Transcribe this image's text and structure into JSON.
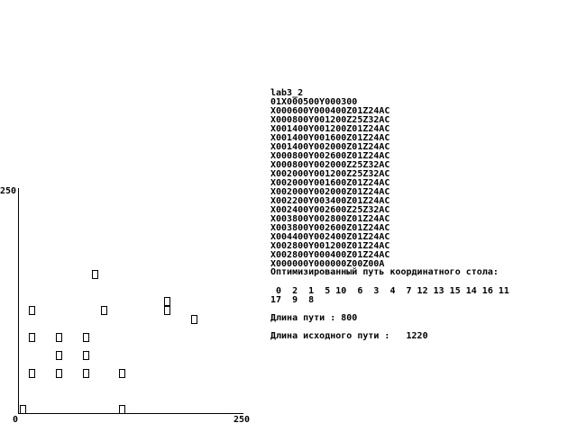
{
  "program": {
    "title": "lab3_2",
    "lines": [
      "01X000500Y000300",
      "X000600Y000400Z01Z24AC",
      "X000800Y001200Z25Z32AC",
      "X001400Y001200Z01Z24AC",
      "X001400Y001600Z01Z24AC",
      "X001400Y002000Z01Z24AC",
      "X000800Y002600Z01Z24AC",
      "X000800Y002000Z25Z32AC",
      "X002000Y001200Z25Z32AC",
      "X002000Y001600Z01Z24AC",
      "X002000Y002000Z01Z24AC",
      "X002200Y003400Z01Z24AC",
      "X002400Y002600Z25Z32AC",
      "X003800Y002800Z01Z24AC",
      "X003800Y002600Z01Z24AC",
      "X004400Y002400Z01Z24AC",
      "X002800Y001200Z01Z24AC",
      "X002800Y000400Z01Z24AC",
      "X000000Y000000Z00Z00A"
    ]
  },
  "result": {
    "status": "Оптимизированный путь координатного стола:",
    "route_line_1": " 0  2  1  5 10  6  3  4  7 12 13 15 14 16 11",
    "route_line_2": "17  9  8",
    "length_label": "Длина пути : 800",
    "orig_length_label": "Длина исходного пути :   1220"
  },
  "axes": {
    "y_max_label": "250",
    "x_min_label": "0",
    "x_max_label": "250"
  },
  "chart_data": {
    "type": "scatter",
    "xlim": [
      0,
      250
    ],
    "ylim": [
      0,
      250
    ],
    "points": [
      {
        "x": 5,
        "y": 5
      },
      {
        "x": 115,
        "y": 5
      },
      {
        "x": 15,
        "y": 45
      },
      {
        "x": 45,
        "y": 45
      },
      {
        "x": 75,
        "y": 45
      },
      {
        "x": 115,
        "y": 45
      },
      {
        "x": 45,
        "y": 65
      },
      {
        "x": 75,
        "y": 65
      },
      {
        "x": 15,
        "y": 85
      },
      {
        "x": 45,
        "y": 85
      },
      {
        "x": 75,
        "y": 85
      },
      {
        "x": 15,
        "y": 115
      },
      {
        "x": 95,
        "y": 115
      },
      {
        "x": 165,
        "y": 115
      },
      {
        "x": 165,
        "y": 125
      },
      {
        "x": 195,
        "y": 105
      },
      {
        "x": 85,
        "y": 155
      }
    ],
    "colors": {
      "axis": "#000000",
      "marker": "#000000",
      "background": "#ffffff"
    }
  }
}
